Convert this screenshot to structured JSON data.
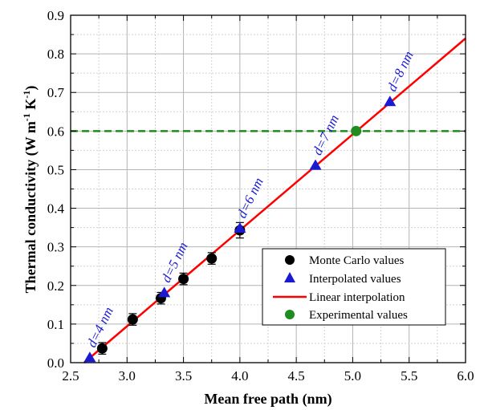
{
  "chart_data": {
    "type": "scatter",
    "xlabel": "Mean free path  (nm)",
    "ylabel_main": "Thermal conductivity (W m",
    "ylabel_sup1": "-1",
    "ylabel_mid": " K",
    "ylabel_sup2": "-1",
    "ylabel_end": ")",
    "xlim": [
      2.5,
      6.0
    ],
    "ylim": [
      0.0,
      0.9
    ],
    "xticks": [
      "2.5",
      "3.0",
      "3.5",
      "4.0",
      "4.5",
      "5.0",
      "5.5",
      "6.0"
    ],
    "yticks": [
      "0.0",
      "0.1",
      "0.2",
      "0.3",
      "0.4",
      "0.5",
      "0.6",
      "0.7",
      "0.8",
      "0.9"
    ],
    "grid": true,
    "legend_position": "bottom-right",
    "series": [
      {
        "name": "Monte Carlo values",
        "marker": "circle",
        "color": "#000000",
        "x": [
          2.78,
          3.05,
          3.3,
          3.5,
          3.75,
          4.0
        ],
        "y": [
          0.037,
          0.112,
          0.167,
          0.217,
          0.27,
          0.343
        ],
        "err": [
          0.015,
          0.015,
          0.015,
          0.015,
          0.015,
          0.02
        ]
      },
      {
        "name": "Interpolated values",
        "marker": "triangle",
        "color": "#1a1ad2",
        "x": [
          2.67,
          3.33,
          4.0,
          4.67,
          5.33
        ],
        "y": [
          0.012,
          0.18,
          0.347,
          0.51,
          0.675
        ]
      },
      {
        "name": "Linear interpolation",
        "marker": "line",
        "color": "#ff0000",
        "x": [
          2.62,
          6.0
        ],
        "y": [
          0.0,
          0.84
        ]
      },
      {
        "name": "Experimental values",
        "marker": "circle",
        "color": "#1e8c1e",
        "x": [
          5.03
        ],
        "y": [
          0.6
        ]
      }
    ],
    "reference_line": {
      "y": 0.6,
      "color": "#1e8c1e",
      "style": "dashed"
    },
    "annotations": [
      {
        "text": "d=4 nm",
        "x": 2.67,
        "y": 0.012
      },
      {
        "text": "d=5 nm",
        "x": 3.33,
        "y": 0.18
      },
      {
        "text": "d=6 nm",
        "x": 4.0,
        "y": 0.347
      },
      {
        "text": "d=7 nm",
        "x": 4.67,
        "y": 0.51
      },
      {
        "text": "d=8 nm",
        "x": 5.33,
        "y": 0.675
      }
    ]
  }
}
